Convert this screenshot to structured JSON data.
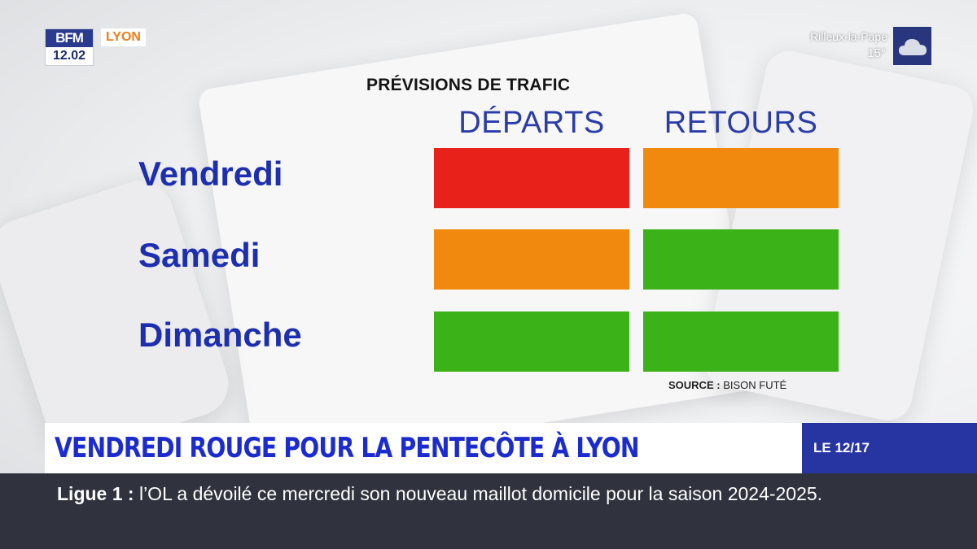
{
  "overlay": {
    "brand": "BFM",
    "time": "12.02",
    "channel": "LYON"
  },
  "weather": {
    "city": "Rilleux-la-Pape",
    "temperature": "15°",
    "icon": "cloud-icon"
  },
  "forecast": {
    "title": "PRÉVISIONS DE TRAFIC",
    "columns": [
      "DÉPARTS",
      "RETOURS"
    ],
    "rows": [
      {
        "day": "Vendredi",
        "departs": "rouge",
        "retours": "orange"
      },
      {
        "day": "Samedi",
        "departs": "orange",
        "retours": "vert"
      },
      {
        "day": "Dimanche",
        "departs": "vert",
        "retours": "vert"
      }
    ],
    "source_label": "SOURCE :",
    "source": "BISON FUTÉ",
    "colors": {
      "rouge": "#e8221a",
      "orange": "#f0890d",
      "vert": "#3cb219"
    }
  },
  "headline": {
    "text": "VENDREDI ROUGE POUR LA PENTECÔTE À LYON",
    "show": "LE 12/17"
  },
  "ticker": {
    "label": "Ligue 1 :",
    "text": "l’OL a dévoilé ce mercredi son nouveau maillot domicile pour la saison 2024-2025."
  }
}
